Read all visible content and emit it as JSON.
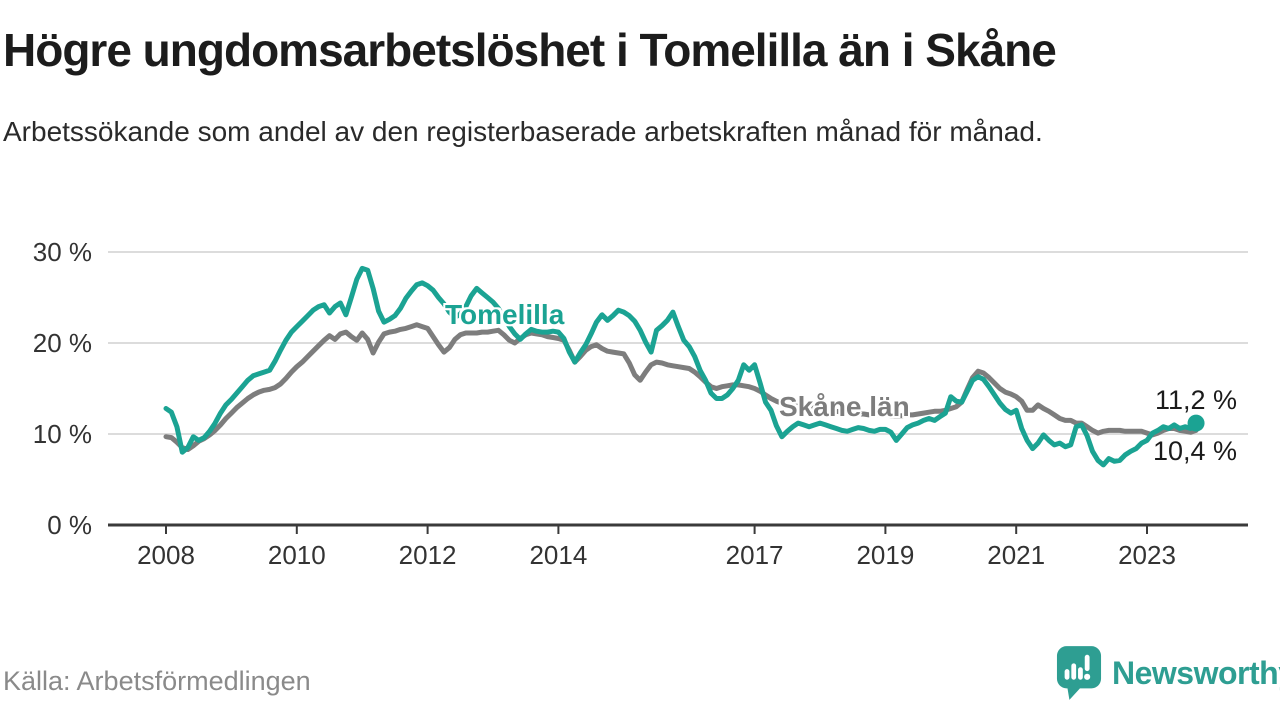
{
  "header": {
    "title": "Högre ungdomsarbetslöshet i Tomelilla än i Skåne",
    "subtitle": "Arbetssökande som andel av den registerbaserade arbetskraften månad för månad."
  },
  "chart_data": {
    "type": "line",
    "title": "Högre ungdomsarbetslöshet i Tomelilla än i Skåne",
    "x_unit": "month",
    "x_start": "2008-01",
    "x_end": "2023-10",
    "grid": "horizontal",
    "legend_position": "inline-labels",
    "x_axis": {
      "tick_years": [
        2008,
        2010,
        2012,
        2014,
        2017,
        2019,
        2021,
        2023
      ],
      "tick_labels": [
        "2008",
        "2010",
        "2012",
        "2014",
        "2017",
        "2019",
        "2021",
        "2023"
      ]
    },
    "y_axis": {
      "tick_values": [
        0,
        10,
        20,
        30
      ],
      "tick_labels": [
        "0 %",
        "10 %",
        "20 %",
        "30 %"
      ],
      "ylim": [
        0,
        32.5
      ]
    },
    "series": [
      {
        "name": "Tomelilla",
        "color": "#1ba393",
        "end_label": "11,2 %",
        "last_value": 11.2,
        "end_dot": true,
        "values": [
          12.8,
          12.4,
          10.8,
          8.0,
          8.5,
          9.7,
          9.3,
          9.6,
          10.3,
          11.2,
          12.3,
          13.2,
          13.8,
          14.5,
          15.2,
          15.9,
          16.4,
          16.6,
          16.8,
          17.0,
          18.0,
          19.2,
          20.3,
          21.2,
          21.8,
          22.4,
          23.0,
          23.6,
          24.0,
          24.2,
          23.3,
          24.0,
          24.4,
          23.1,
          25.0,
          27.0,
          28.2,
          28.0,
          26.0,
          23.5,
          22.3,
          22.6,
          23.0,
          23.8,
          24.9,
          25.7,
          26.4,
          26.6,
          26.3,
          25.8,
          25.0,
          24.3,
          23.4,
          22.8,
          23.2,
          24.0,
          25.2,
          26.0,
          25.5,
          25.0,
          24.5,
          23.8,
          22.8,
          21.8,
          21.0,
          20.4,
          21.0,
          21.5,
          21.3,
          21.2,
          21.2,
          21.3,
          21.2,
          20.5,
          19.0,
          17.9,
          18.9,
          19.8,
          21.0,
          22.3,
          23.1,
          22.5,
          23.0,
          23.6,
          23.4,
          23.0,
          22.4,
          21.4,
          20.1,
          19.0,
          21.4,
          21.9,
          22.5,
          23.4,
          21.8,
          20.3,
          19.6,
          18.5,
          17.0,
          15.9,
          14.5,
          13.9,
          13.9,
          14.3,
          15.0,
          15.9,
          17.6,
          17.0,
          17.6,
          15.6,
          13.5,
          12.6,
          10.9,
          9.7,
          10.3,
          10.8,
          11.2,
          11.0,
          10.8,
          11.0,
          11.2,
          11.0,
          10.8,
          10.6,
          10.4,
          10.3,
          10.5,
          10.7,
          10.6,
          10.4,
          10.3,
          10.5,
          10.5,
          10.2,
          9.3,
          10.0,
          10.7,
          11.0,
          11.2,
          11.5,
          11.7,
          11.5,
          11.9,
          12.3,
          14.1,
          13.6,
          13.5,
          14.7,
          15.9,
          16.3,
          16.0,
          15.2,
          14.3,
          13.4,
          12.7,
          12.3,
          12.6,
          10.6,
          9.3,
          8.4,
          9.0,
          9.9,
          9.3,
          8.8,
          9.0,
          8.6,
          8.8,
          10.8,
          11.0,
          9.8,
          8.1,
          7.1,
          6.6,
          7.3,
          7.0,
          7.1,
          7.7,
          8.1,
          8.4,
          9.0,
          9.3,
          10.1,
          10.4,
          10.8,
          10.6,
          11.0,
          10.6,
          10.8,
          10.6,
          11.2
        ]
      },
      {
        "name": "Skåne län",
        "color": "#7d7d7d",
        "end_label": "10,4 %",
        "last_value": 10.4,
        "end_dot": false,
        "values": [
          9.7,
          9.6,
          9.1,
          8.5,
          8.3,
          8.7,
          9.2,
          9.5,
          9.9,
          10.4,
          11.0,
          11.7,
          12.3,
          12.9,
          13.4,
          13.9,
          14.3,
          14.6,
          14.8,
          14.9,
          15.1,
          15.5,
          16.1,
          16.8,
          17.4,
          17.9,
          18.5,
          19.1,
          19.7,
          20.3,
          20.8,
          20.4,
          21.0,
          21.2,
          20.7,
          20.3,
          21.1,
          20.4,
          18.9,
          20.1,
          21.0,
          21.2,
          21.3,
          21.5,
          21.6,
          21.8,
          22.0,
          21.8,
          21.6,
          20.7,
          19.8,
          19.0,
          19.5,
          20.4,
          20.9,
          21.1,
          21.1,
          21.1,
          21.2,
          21.2,
          21.3,
          21.4,
          20.9,
          20.3,
          20.0,
          20.5,
          20.9,
          21.1,
          21.0,
          20.9,
          20.7,
          20.6,
          20.5,
          20.3,
          19.2,
          17.9,
          18.5,
          19.2,
          19.6,
          19.8,
          19.4,
          19.1,
          19.0,
          18.9,
          18.8,
          17.8,
          16.5,
          15.9,
          16.8,
          17.6,
          17.9,
          17.8,
          17.6,
          17.5,
          17.4,
          17.3,
          17.2,
          16.8,
          16.3,
          15.7,
          15.2,
          15.0,
          15.2,
          15.3,
          15.4,
          15.4,
          15.3,
          15.2,
          15.0,
          14.7,
          14.3,
          13.9,
          13.6,
          13.4,
          13.3,
          13.2,
          13.1,
          13.0,
          12.9,
          12.9,
          12.8,
          12.7,
          12.6,
          12.5,
          12.4,
          12.3,
          12.3,
          12.2,
          12.2,
          12.1,
          12.1,
          12.1,
          12.1,
          12.0,
          12.0,
          12.0,
          12.1,
          12.1,
          12.2,
          12.3,
          12.4,
          12.5,
          12.5,
          12.6,
          12.8,
          13.0,
          13.5,
          14.9,
          16.2,
          16.9,
          16.7,
          16.2,
          15.6,
          15.0,
          14.6,
          14.4,
          14.1,
          13.6,
          12.6,
          12.6,
          13.2,
          12.8,
          12.5,
          12.1,
          11.7,
          11.5,
          11.5,
          11.2,
          11.2,
          10.8,
          10.4,
          10.1,
          10.3,
          10.4,
          10.4,
          10.4,
          10.3,
          10.3,
          10.3,
          10.3,
          10.1,
          9.9,
          10.1,
          10.4,
          10.6,
          10.6,
          10.4,
          10.3,
          10.2,
          10.4
        ]
      }
    ]
  },
  "footer": {
    "source": "Källa: Arbetsförmedlingen",
    "brand": "Newsworthy",
    "logo_icon": "speech-bubble-bar-chart-icon"
  },
  "colors": {
    "accent_teal": "#1ba393",
    "line_gray": "#7d7d7d",
    "grid": "#dcdcdc",
    "axis": "#3a3a3a",
    "text_dark": "#1c1c1c",
    "text_muted": "#8a8a8a",
    "logo_teal": "#2e9e92",
    "background": "#ffffff"
  }
}
